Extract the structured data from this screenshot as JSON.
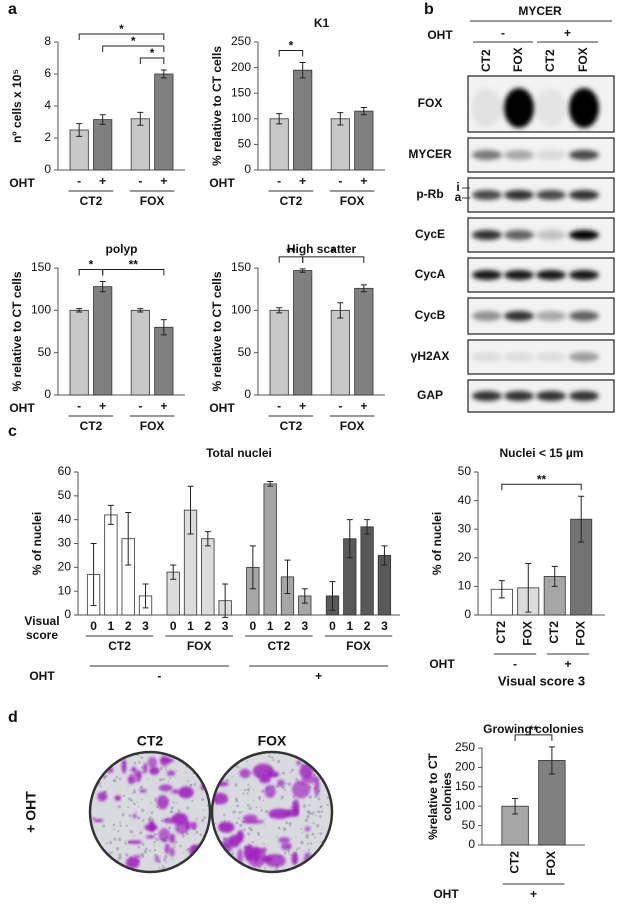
{
  "panel_labels": [
    "a",
    "b",
    "c",
    "d"
  ],
  "chart_data": [
    {
      "type": "bar",
      "ylabel": "nº cells x 10⁵",
      "category_label": "OHT",
      "categories": [
        "-",
        "+",
        "-",
        "+"
      ],
      "groups": [
        "CT2",
        "FOX"
      ],
      "values": [
        2.5,
        3.15,
        3.2,
        6.0
      ],
      "errors": [
        0.4,
        0.3,
        0.4,
        0.25
      ],
      "colors": [
        "#c8c8c8",
        "#808080",
        "#c8c8c8",
        "#808080"
      ],
      "ylim": [
        0,
        8
      ],
      "yticks": [
        0,
        2,
        4,
        6,
        8
      ],
      "significance": [
        {
          "from": 2,
          "to": 3,
          "label": "*"
        },
        {
          "from": 1,
          "to": 3,
          "label": "*"
        },
        {
          "from": 0,
          "to": 3,
          "label": "*"
        }
      ]
    },
    {
      "type": "bar",
      "title": "K1",
      "ylabel": "% relative to CT cells",
      "category_label": "OHT",
      "categories": [
        "-",
        "+",
        "-",
        "+"
      ],
      "groups": [
        "CT2",
        "FOX"
      ],
      "values": [
        100,
        195,
        100,
        115
      ],
      "errors": [
        10,
        15,
        12,
        7
      ],
      "colors": [
        "#c8c8c8",
        "#808080",
        "#c8c8c8",
        "#808080"
      ],
      "ylim": [
        0,
        250
      ],
      "yticks": [
        0,
        50,
        100,
        150,
        200,
        250
      ],
      "significance": [
        {
          "from": 0,
          "to": 1,
          "label": "*"
        }
      ]
    },
    {
      "type": "bar",
      "title": "polyp",
      "ylabel": "% relative to CT cells",
      "category_label": "OHT",
      "categories": [
        "-",
        "+",
        "-",
        "+"
      ],
      "groups": [
        "CT2",
        "FOX"
      ],
      "values": [
        100,
        128,
        100,
        80
      ],
      "errors": [
        2,
        6,
        2,
        9
      ],
      "colors": [
        "#c8c8c8",
        "#808080",
        "#c8c8c8",
        "#808080"
      ],
      "ylim": [
        0,
        150
      ],
      "yticks": [
        0,
        50,
        100,
        150
      ],
      "significance": [
        {
          "from": 0,
          "to": 1,
          "label": "*"
        },
        {
          "from": 1,
          "to": 3,
          "label": "**"
        }
      ]
    },
    {
      "type": "bar",
      "title": "High scatter",
      "ylabel": "% relative to CT cells",
      "category_label": "OHT",
      "categories": [
        "-",
        "+",
        "-",
        "+"
      ],
      "groups": [
        "CT2",
        "FOX"
      ],
      "values": [
        100,
        147,
        100,
        126
      ],
      "errors": [
        3,
        2,
        9,
        4
      ],
      "colors": [
        "#c8c8c8",
        "#808080",
        "#c8c8c8",
        "#808080"
      ],
      "ylim": [
        0,
        150
      ],
      "yticks": [
        0,
        50,
        100,
        150
      ],
      "significance": [
        {
          "from": 0,
          "to": 1,
          "label": "**"
        },
        {
          "from": 1,
          "to": 3,
          "label": "*"
        }
      ]
    },
    {
      "type": "bar",
      "title": "Total nuclei",
      "ylabel": "% of nuclei",
      "category_label": [
        "Visual",
        "score"
      ],
      "categories": [
        "0",
        "1",
        "2",
        "3",
        "0",
        "1",
        "2",
        "3",
        "0",
        "1",
        "2",
        "3",
        "0",
        "1",
        "2",
        "3"
      ],
      "groups": [
        "CT2",
        "FOX",
        "CT2",
        "FOX"
      ],
      "condition_label": "OHT",
      "conditions": [
        "-",
        "+"
      ],
      "values": [
        17,
        42,
        32,
        8,
        18,
        44,
        32,
        6,
        20,
        55,
        16,
        8,
        8,
        32,
        37,
        25
      ],
      "errors": [
        13,
        4,
        11,
        5,
        3,
        10,
        3,
        7,
        9,
        1,
        7,
        3,
        6,
        8,
        3,
        4
      ],
      "colors": [
        "#ffffff",
        "#ffffff",
        "#ffffff",
        "#ffffff",
        "#dcdcdc",
        "#dcdcdc",
        "#dcdcdc",
        "#dcdcdc",
        "#a6a6a6",
        "#a6a6a6",
        "#a6a6a6",
        "#a6a6a6",
        "#595959",
        "#595959",
        "#595959",
        "#595959"
      ],
      "ylim": [
        0,
        60
      ],
      "yticks": [
        0,
        10,
        20,
        30,
        40,
        50,
        60
      ]
    },
    {
      "type": "bar",
      "title": "Nuclei  < 15 µm",
      "ylabel": "% of nuclei",
      "xlabel": "Visual score 3",
      "categories": [
        "CT2",
        "FOX",
        "CT2",
        "FOX"
      ],
      "condition_label": "OHT",
      "conditions": [
        "-",
        "+"
      ],
      "values": [
        9,
        9.5,
        13.5,
        33.5
      ],
      "errors": [
        3,
        8.5,
        3.5,
        8
      ],
      "colors": [
        "#ffffff",
        "#dcdcdc",
        "#a6a6a6",
        "#737373"
      ],
      "ylim": [
        0,
        50
      ],
      "yticks": [
        0,
        10,
        20,
        30,
        40,
        50
      ],
      "significance": [
        {
          "from": 0,
          "to": 3,
          "label": "**"
        }
      ]
    },
    {
      "type": "bar",
      "title": "Growing colonies",
      "ylabel": [
        "%relative to CT",
        "colonies"
      ],
      "categories": [
        "CT2",
        "FOX"
      ],
      "condition_label": "OHT",
      "conditions": [
        "+"
      ],
      "values": [
        100,
        218
      ],
      "errors": [
        20,
        35
      ],
      "colors": [
        "#a6a6a6",
        "#808080"
      ],
      "ylim": [
        0,
        250
      ],
      "yticks": [
        0,
        50,
        100,
        150,
        200,
        250
      ],
      "significance": [
        {
          "from": 0,
          "to": 1,
          "label": "**"
        }
      ]
    }
  ],
  "blot": {
    "title": "MYCER",
    "condition_label": "OHT",
    "conditions": [
      "-",
      "+"
    ],
    "lanes": [
      "CT2",
      "FOX",
      "CT2",
      "FOX"
    ],
    "rows": [
      "FOX",
      "MYCER",
      "p-Rb",
      "CycE",
      "CycA",
      "CycB",
      "γH2AX",
      "GAP"
    ],
    "prb_bands": [
      "i",
      "a"
    ]
  },
  "colonies": {
    "labels": [
      "CT2",
      "FOX"
    ],
    "treatment": "+ OHT"
  }
}
